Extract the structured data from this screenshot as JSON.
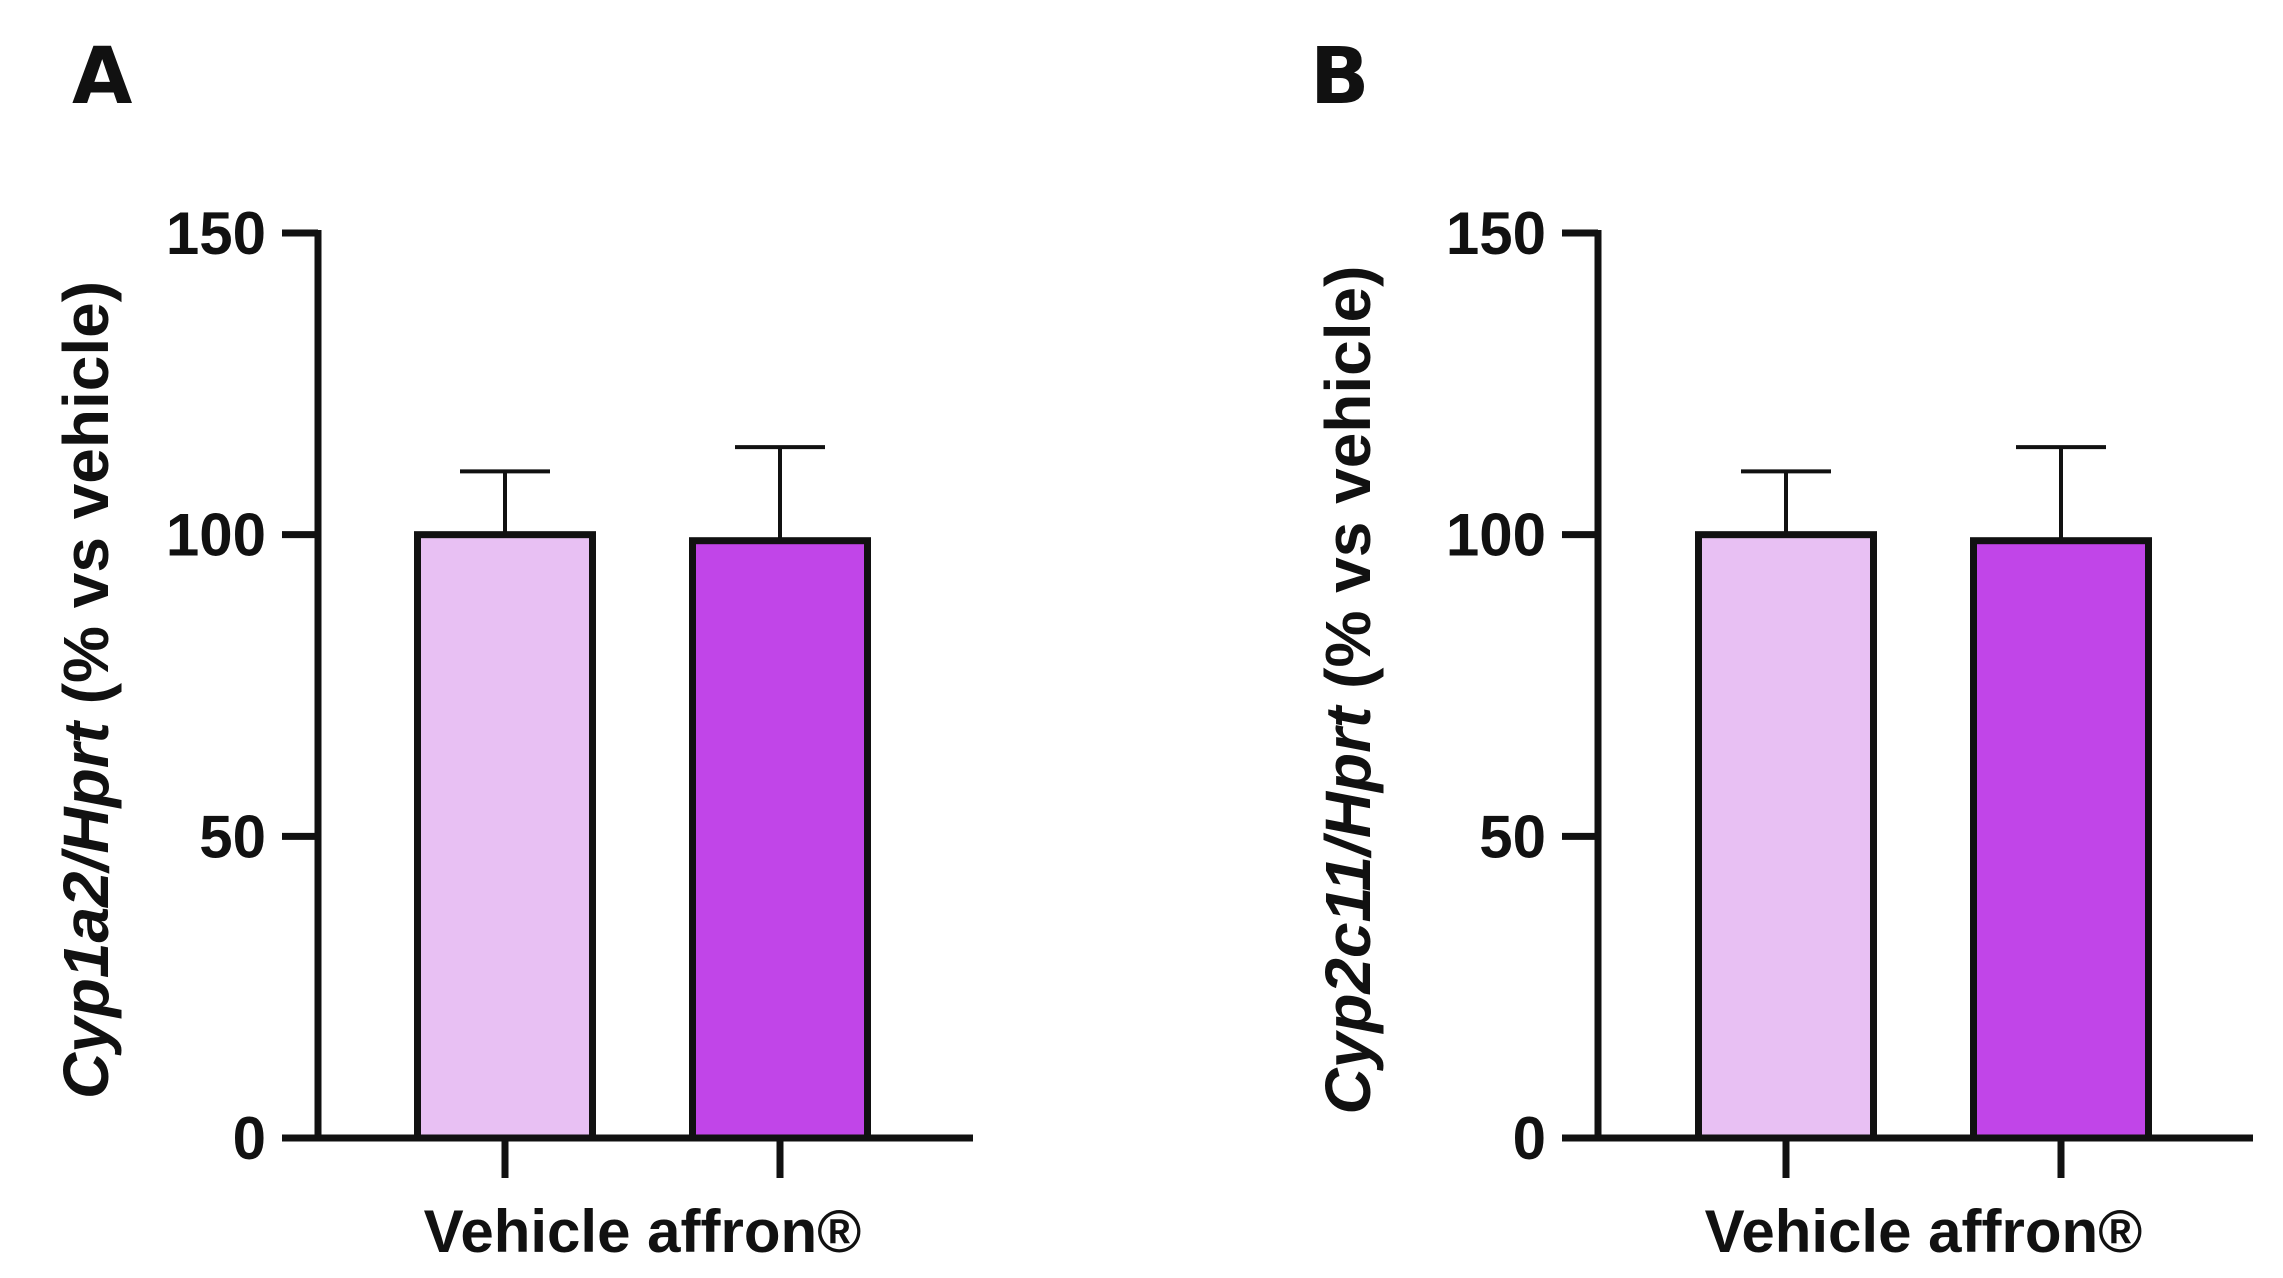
{
  "chart_data": [
    {
      "panel": "A",
      "type": "bar",
      "ylabel_gene": "Cyp1a2/Hprt",
      "ylabel_suffix": " (% vs vehicle)",
      "categories": [
        "Vehicle",
        "affron®"
      ],
      "values": [
        100,
        99
      ],
      "error_upper": [
        110.5,
        114.5
      ],
      "bar_colors": [
        "#e8c0f3",
        "#c145e8"
      ],
      "yticks": [
        0,
        50,
        100,
        150
      ],
      "ylim": [
        0,
        150
      ]
    },
    {
      "panel": "B",
      "type": "bar",
      "ylabel_gene": "Cyp2c11/Hprt",
      "ylabel_suffix": " (% vs vehicle)",
      "categories": [
        "Vehicle",
        "affron®"
      ],
      "values": [
        100,
        99
      ],
      "error_upper": [
        110.5,
        114.5
      ],
      "bar_colors": [
        "#e8c0f3",
        "#c145e8"
      ],
      "yticks": [
        0,
        50,
        100,
        150
      ],
      "ylim": [
        0,
        150
      ]
    }
  ]
}
